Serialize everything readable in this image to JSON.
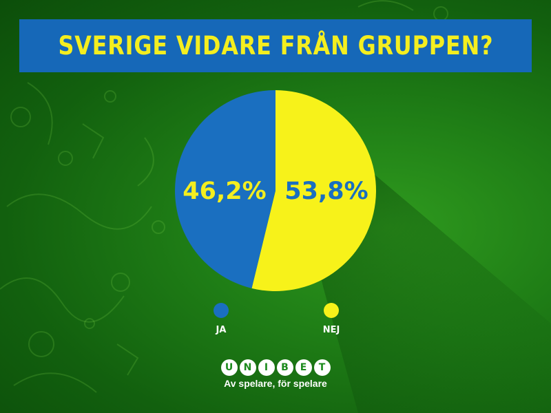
{
  "title": "SVERIGE VIDARE FRÅN GRUPPEN?",
  "chart_data": {
    "type": "pie",
    "title": "SVERIGE VIDARE FRÅN GRUPPEN?",
    "slices": [
      {
        "label": "JA",
        "value": 46.2,
        "value_label": "46,2%",
        "color": "#1a6fc0",
        "label_color": "#f4ee1f"
      },
      {
        "label": "NEJ",
        "value": 53.8,
        "value_label": "53,8%",
        "color": "#f7f21a",
        "label_color": "#1a6fc0"
      }
    ],
    "legend_position": "bottom"
  },
  "brand": {
    "letters": [
      "U",
      "N",
      "I",
      "B",
      "E",
      "T"
    ],
    "tagline": "Av spelare, för spelare"
  }
}
